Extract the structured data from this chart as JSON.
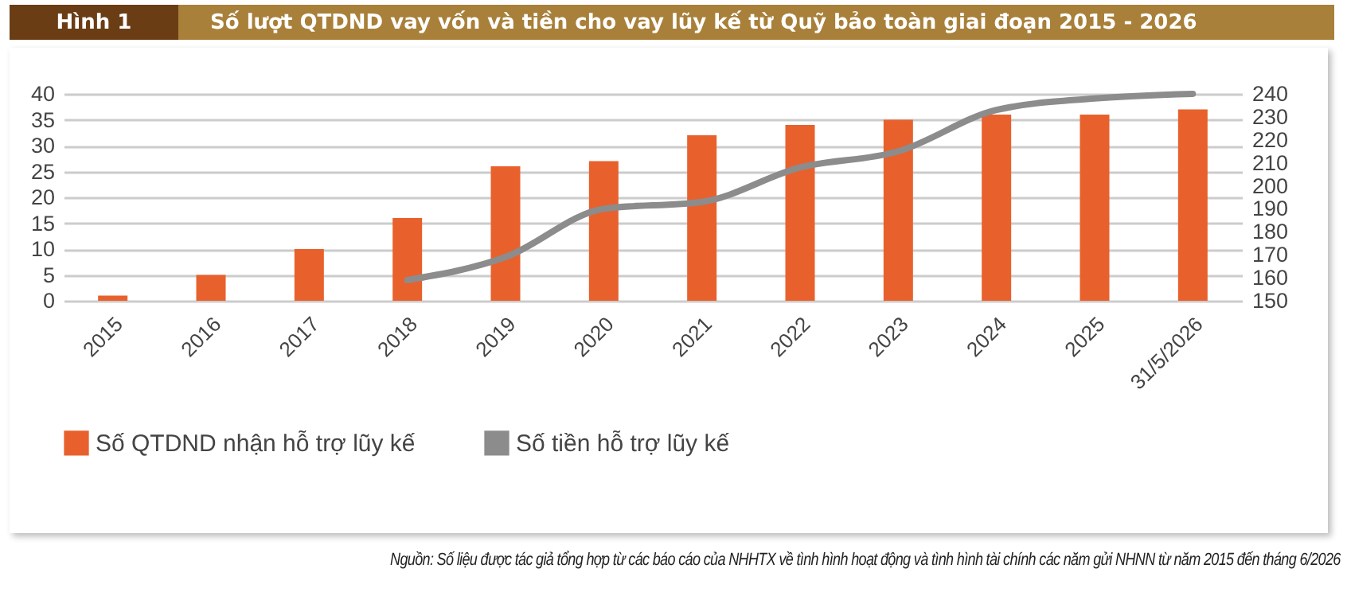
{
  "chart_data": {
    "type": "bar",
    "title": "Số lượt QTDND vay vốn và tiền cho vay lũy kế từ Quỹ bảo toàn giai đoạn 2015 - 2026",
    "categories": [
      "2015",
      "2016",
      "2017",
      "2018",
      "2019",
      "2020",
      "2021",
      "2022",
      "2023",
      "2024",
      "2025",
      "31/5/2026"
    ],
    "series": [
      {
        "name": "Số QTDND nhận hỗ trợ lũy kế",
        "color": "#e8612c",
        "values": [
          1,
          5,
          10,
          16,
          26,
          27,
          32,
          34,
          35,
          36,
          36,
          37
        ]
      },
      {
        "name": "Số tiền hỗ trợ lũy kế",
        "type": "line",
        "axis": "y2",
        "color": "#8c8c8c",
        "values": [
          null,
          null,
          null,
          159,
          169,
          190,
          193,
          208,
          215,
          233,
          238,
          240
        ]
      }
    ],
    "ylim": [
      0,
      40
    ],
    "yticks": [
      0,
      5,
      10,
      15,
      20,
      25,
      30,
      35,
      40
    ],
    "y2lim": [
      150,
      240
    ],
    "y2ticks": [
      150,
      160,
      170,
      180,
      190,
      200,
      210,
      220,
      230,
      240
    ],
    "grid": "y",
    "legend": "bottom",
    "annotations": [
      "Hình 1",
      "Nguồn: Số liệu được tác giả tổng hợp từ các báo cáo của NHHTX về tình hình hoạt động và tình hình tài chính các năm gửi NHNN từ năm 2015 đến tháng 6/2026"
    ]
  }
}
